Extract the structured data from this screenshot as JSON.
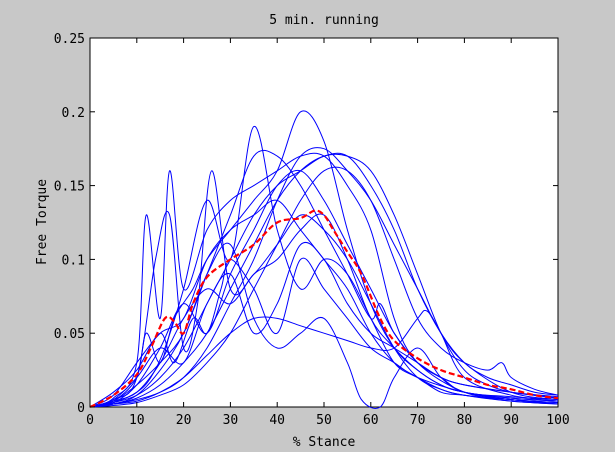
{
  "chart_data": {
    "type": "line",
    "title": "5 min. running",
    "xlabel": "% Stance",
    "ylabel": "Free Torque",
    "xlim": [
      0,
      100
    ],
    "ylim": [
      0,
      0.25
    ],
    "xticks": [
      "0",
      "10",
      "20",
      "30",
      "40",
      "50",
      "60",
      "70",
      "80",
      "90",
      "100"
    ],
    "yticks": [
      "0",
      "0.05",
      "0.1",
      "0.15",
      "0.2",
      "0.25"
    ],
    "grid": false,
    "trial_color": "#0000ff",
    "mean_color": "#ff0000",
    "mean": {
      "x": [
        0,
        5,
        10,
        13,
        16,
        18,
        20,
        22,
        25,
        30,
        35,
        40,
        45,
        48,
        50,
        52,
        55,
        58,
        62,
        65,
        70,
        75,
        80,
        85,
        90,
        95,
        100
      ],
      "y": [
        0,
        0.008,
        0.022,
        0.04,
        0.06,
        0.058,
        0.05,
        0.07,
        0.088,
        0.1,
        0.11,
        0.125,
        0.128,
        0.133,
        0.13,
        0.12,
        0.105,
        0.09,
        0.06,
        0.045,
        0.033,
        0.025,
        0.02,
        0.015,
        0.012,
        0.008,
        0.006
      ]
    },
    "series": [
      {
        "x": [
          0,
          5,
          10,
          12,
          15,
          18,
          22,
          25,
          30,
          35,
          40,
          45,
          50,
          55,
          60,
          65,
          70,
          75,
          80,
          90,
          100
        ],
        "y": [
          0,
          0.004,
          0.02,
          0.05,
          0.03,
          0.06,
          0.08,
          0.1,
          0.12,
          0.14,
          0.16,
          0.2,
          0.18,
          0.12,
          0.07,
          0.04,
          0.025,
          0.015,
          0.01,
          0.006,
          0.004
        ]
      },
      {
        "x": [
          0,
          5,
          10,
          12,
          15,
          17,
          20,
          25,
          30,
          35,
          40,
          45,
          50,
          55,
          60,
          65,
          70,
          80,
          90,
          100
        ],
        "y": [
          0,
          0.006,
          0.03,
          0.13,
          0.06,
          0.16,
          0.08,
          0.12,
          0.14,
          0.15,
          0.16,
          0.17,
          0.17,
          0.15,
          0.12,
          0.06,
          0.03,
          0.01,
          0.005,
          0.003
        ]
      },
      {
        "x": [
          0,
          5,
          10,
          13,
          16,
          20,
          25,
          30,
          35,
          40,
          45,
          50,
          55,
          60,
          65,
          70,
          75,
          80,
          90,
          100
        ],
        "y": [
          0,
          0.003,
          0.01,
          0.02,
          0.04,
          0.08,
          0.14,
          0.1,
          0.19,
          0.12,
          0.08,
          0.1,
          0.09,
          0.06,
          0.03,
          0.02,
          0.012,
          0.008,
          0.005,
          0.003
        ]
      },
      {
        "x": [
          0,
          5,
          10,
          15,
          20,
          25,
          30,
          35,
          40,
          45,
          50,
          55,
          60,
          65,
          70,
          75,
          80,
          85,
          90,
          95,
          100
        ],
        "y": [
          0,
          0.003,
          0.008,
          0.02,
          0.04,
          0.07,
          0.1,
          0.13,
          0.15,
          0.16,
          0.17,
          0.17,
          0.16,
          0.13,
          0.09,
          0.05,
          0.025,
          0.015,
          0.01,
          0.008,
          0.006
        ]
      },
      {
        "x": [
          0,
          5,
          10,
          14,
          17,
          20,
          23,
          26,
          30,
          35,
          40,
          45,
          50,
          55,
          60,
          65,
          70,
          75,
          80,
          90,
          100
        ],
        "y": [
          0,
          0.005,
          0.02,
          0.1,
          0.13,
          0.04,
          0.07,
          0.16,
          0.08,
          0.09,
          0.11,
          0.13,
          0.12,
          0.1,
          0.07,
          0.04,
          0.02,
          0.012,
          0.008,
          0.004,
          0.002
        ]
      },
      {
        "x": [
          0,
          5,
          10,
          15,
          20,
          25,
          30,
          35,
          40,
          45,
          50,
          55,
          60,
          65,
          70,
          75,
          80,
          90,
          100
        ],
        "y": [
          0,
          0.002,
          0.005,
          0.01,
          0.02,
          0.04,
          0.07,
          0.1,
          0.14,
          0.17,
          0.175,
          0.16,
          0.14,
          0.11,
          0.08,
          0.05,
          0.03,
          0.01,
          0.005
        ]
      },
      {
        "x": [
          0,
          5,
          10,
          15,
          20,
          25,
          30,
          35,
          40,
          45,
          50,
          55,
          58,
          62,
          65,
          70,
          75,
          80,
          90,
          100
        ],
        "y": [
          0,
          0.004,
          0.015,
          0.03,
          0.05,
          0.09,
          0.11,
          0.06,
          0.04,
          0.05,
          0.06,
          0.03,
          0.005,
          0.0,
          0.02,
          0.04,
          0.02,
          0.01,
          0.005,
          0.003
        ]
      },
      {
        "x": [
          0,
          5,
          10,
          15,
          20,
          25,
          30,
          35,
          40,
          45,
          50,
          55,
          60,
          65,
          70,
          75,
          80,
          85,
          90,
          95,
          100
        ],
        "y": [
          0,
          0.002,
          0.006,
          0.015,
          0.03,
          0.05,
          0.08,
          0.11,
          0.14,
          0.16,
          0.17,
          0.17,
          0.15,
          0.12,
          0.08,
          0.05,
          0.03,
          0.02,
          0.015,
          0.01,
          0.008
        ]
      },
      {
        "x": [
          0,
          5,
          10,
          15,
          18,
          22,
          25,
          28,
          30,
          35,
          40,
          45,
          50,
          55,
          60,
          65,
          70,
          80,
          90,
          100
        ],
        "y": [
          0,
          0.01,
          0.025,
          0.05,
          0.03,
          0.06,
          0.05,
          0.08,
          0.1,
          0.08,
          0.05,
          0.1,
          0.08,
          0.06,
          0.04,
          0.03,
          0.02,
          0.01,
          0.005,
          0.002
        ]
      },
      {
        "x": [
          0,
          5,
          10,
          15,
          20,
          25,
          30,
          35,
          40,
          45,
          50,
          55,
          60,
          62,
          65,
          70,
          75,
          80,
          90,
          100
        ],
        "y": [
          0,
          0.002,
          0.008,
          0.025,
          0.05,
          0.09,
          0.13,
          0.17,
          0.17,
          0.15,
          0.12,
          0.09,
          0.06,
          0.07,
          0.05,
          0.03,
          0.02,
          0.01,
          0.007,
          0.005
        ]
      },
      {
        "x": [
          0,
          5,
          10,
          15,
          20,
          25,
          30,
          35,
          40,
          45,
          50,
          55,
          60,
          65,
          70,
          72,
          75,
          80,
          90,
          100
        ],
        "y": [
          0,
          0.002,
          0.004,
          0.01,
          0.02,
          0.035,
          0.05,
          0.06,
          0.06,
          0.055,
          0.05,
          0.045,
          0.04,
          0.04,
          0.06,
          0.065,
          0.05,
          0.02,
          0.008,
          0.004
        ]
      },
      {
        "x": [
          0,
          5,
          10,
          15,
          20,
          25,
          30,
          35,
          40,
          45,
          50,
          55,
          60,
          65,
          70,
          75,
          80,
          85,
          88,
          90,
          95,
          100
        ],
        "y": [
          0,
          0.001,
          0.003,
          0.008,
          0.015,
          0.03,
          0.05,
          0.08,
          0.11,
          0.14,
          0.16,
          0.16,
          0.14,
          0.1,
          0.06,
          0.04,
          0.03,
          0.025,
          0.03,
          0.02,
          0.012,
          0.008
        ]
      },
      {
        "x": [
          0,
          5,
          10,
          15,
          20,
          25,
          30,
          35,
          40,
          45,
          50,
          55,
          60,
          65,
          70,
          75,
          80,
          90,
          100
        ],
        "y": [
          0,
          0.008,
          0.03,
          0.05,
          0.06,
          0.1,
          0.12,
          0.13,
          0.14,
          0.12,
          0.1,
          0.08,
          0.05,
          0.03,
          0.02,
          0.01,
          0.008,
          0.004,
          0.002
        ]
      },
      {
        "x": [
          0,
          5,
          10,
          15,
          20,
          25,
          30,
          35,
          40,
          45,
          50,
          55,
          60,
          65,
          70,
          75,
          80,
          90,
          100
        ],
        "y": [
          0,
          0.005,
          0.02,
          0.04,
          0.03,
          0.07,
          0.09,
          0.05,
          0.07,
          0.11,
          0.1,
          0.07,
          0.05,
          0.04,
          0.03,
          0.02,
          0.015,
          0.01,
          0.006
        ]
      },
      {
        "x": [
          0,
          5,
          10,
          15,
          20,
          25,
          30,
          35,
          40,
          45,
          50,
          55,
          60,
          65,
          70,
          75,
          80,
          90,
          100
        ],
        "y": [
          0,
          0.003,
          0.015,
          0.04,
          0.07,
          0.05,
          0.09,
          0.12,
          0.15,
          0.16,
          0.14,
          0.11,
          0.08,
          0.05,
          0.03,
          0.02,
          0.015,
          0.01,
          0.007
        ]
      },
      {
        "x": [
          0,
          5,
          10,
          15,
          20,
          25,
          30,
          35,
          40,
          45,
          50,
          55,
          60,
          65,
          70,
          75,
          80,
          90,
          100
        ],
        "y": [
          0,
          0.004,
          0.01,
          0.03,
          0.06,
          0.08,
          0.07,
          0.09,
          0.1,
          0.12,
          0.13,
          0.1,
          0.06,
          0.04,
          0.025,
          0.015,
          0.01,
          0.006,
          0.004
        ]
      }
    ]
  }
}
